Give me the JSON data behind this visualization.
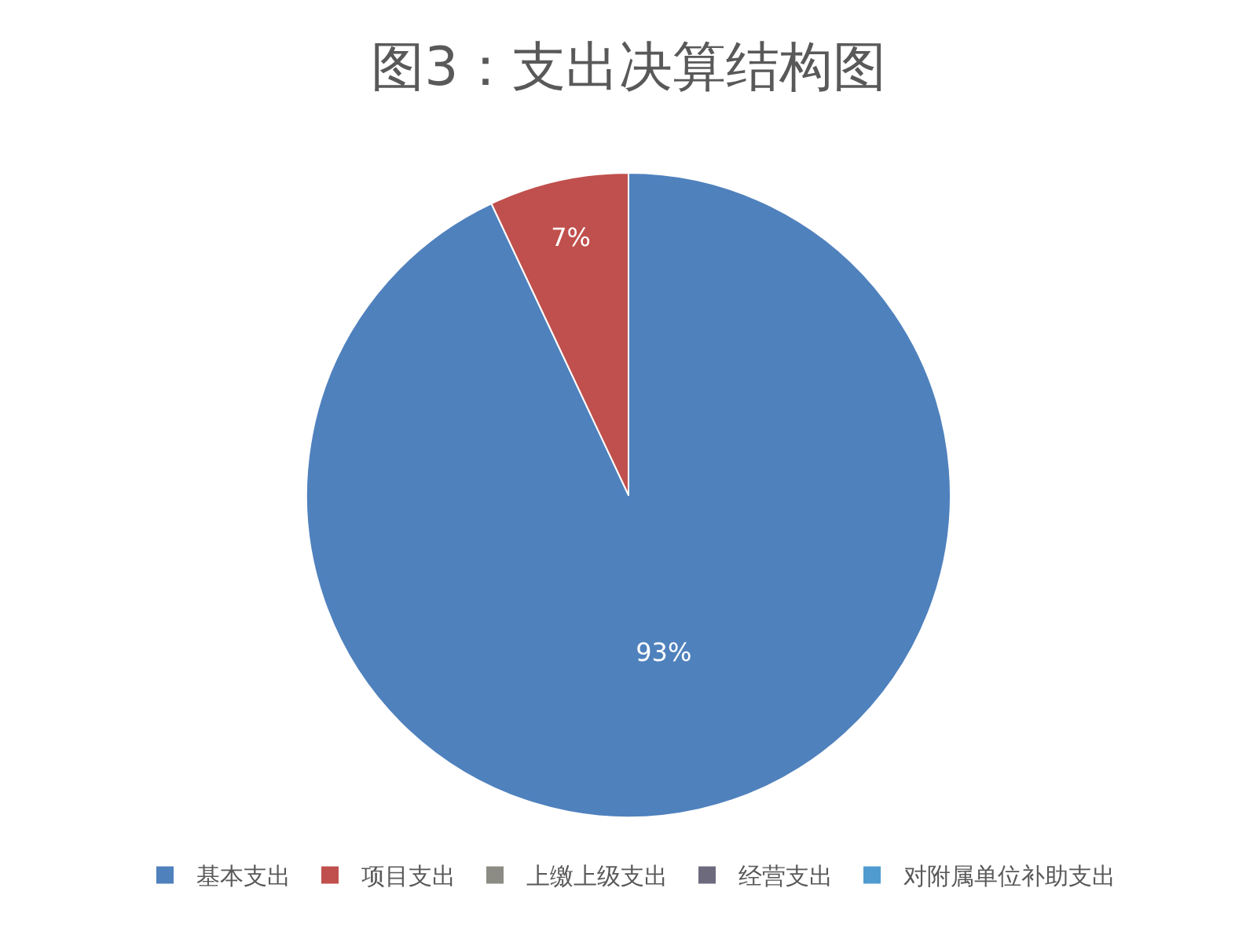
{
  "chart_data": {
    "type": "pie",
    "title": "图3：支出决算结构图",
    "categories": [
      "基本支出",
      "项目支出",
      "上缴上级支出",
      "经营支出",
      "对附属单位补助支出"
    ],
    "values": [
      93,
      7,
      0,
      0,
      0
    ],
    "colors": [
      "#4f81bd",
      "#c0504d",
      "#8c8c84",
      "#6e6a7e",
      "#4f9bd0"
    ],
    "value_labels": [
      "93%",
      "7%",
      null,
      null,
      null
    ],
    "legend": "bottom"
  }
}
